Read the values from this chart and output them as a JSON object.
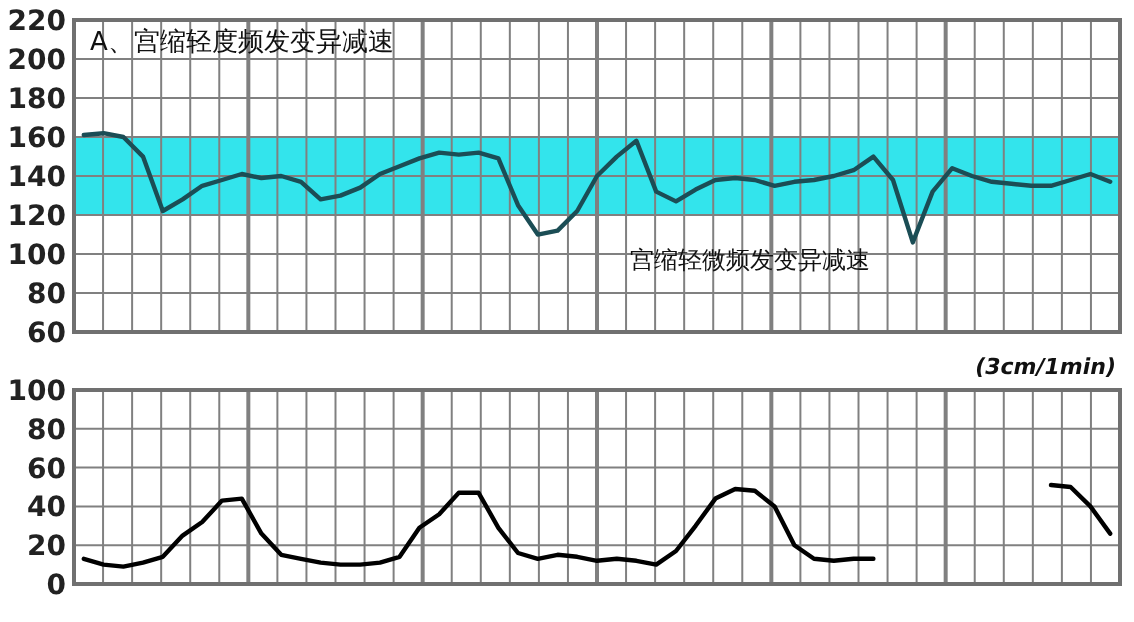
{
  "chart_data": [
    {
      "type": "line",
      "title": "A、宫缩轻度频发变异减速",
      "annotations": [
        "宫缩轻微频发变异减速"
      ],
      "categories": [
        null,
        null,
        null,
        null,
        null,
        null,
        null,
        null,
        null,
        null,
        null,
        null,
        null,
        null,
        null,
        null,
        null,
        null,
        null,
        null,
        null,
        null,
        null,
        null,
        null,
        null,
        null,
        null,
        null,
        null,
        null,
        null,
        null,
        null,
        null,
        null,
        null,
        null,
        null,
        null,
        null,
        null,
        null,
        null,
        null,
        null,
        null,
        null,
        null,
        null,
        null,
        null,
        null
      ],
      "series": [
        {
          "color": "#1b4d55",
          "values": [
            161,
            162,
            160,
            150,
            122,
            128,
            135,
            138,
            141,
            139,
            140,
            137,
            128,
            130,
            134,
            141,
            145,
            149,
            152,
            151,
            152,
            149,
            125,
            110,
            112,
            122,
            140,
            150,
            158,
            132,
            127,
            133,
            138,
            139,
            138,
            135,
            137,
            138,
            140,
            143,
            150,
            138,
            106,
            132,
            144,
            140,
            137,
            136,
            135,
            135,
            138,
            141,
            137
          ]
        }
      ],
      "ylim": [
        60,
        220
      ],
      "yticks": [
        60,
        80,
        100,
        120,
        140,
        160,
        180,
        200,
        220
      ],
      "grid": true,
      "tick_labels": "y",
      "bands": [
        {
          "axis": "y",
          "from": 120,
          "to": 160,
          "color": "#33e4ec"
        }
      ]
    },
    {
      "type": "line",
      "annotations": [
        "(3cm/1min)"
      ],
      "categories": [
        null,
        null,
        null,
        null,
        null,
        null,
        null,
        null,
        null,
        null,
        null,
        null,
        null,
        null,
        null,
        null,
        null,
        null,
        null,
        null,
        null,
        null,
        null,
        null,
        null,
        null,
        null,
        null,
        null,
        null,
        null,
        null,
        null,
        null,
        null,
        null,
        null,
        null,
        null,
        null,
        null,
        null,
        null,
        null,
        null,
        null,
        null,
        null,
        null,
        null,
        null,
        null,
        null
      ],
      "series": [
        {
          "color": "#000000",
          "values": [
            13,
            10,
            9,
            11,
            14,
            25,
            32,
            43,
            44,
            26,
            15,
            13,
            11,
            10,
            10,
            11,
            14,
            29,
            36,
            47,
            47,
            29,
            16,
            13,
            15,
            14,
            12,
            13,
            12,
            10,
            17,
            30,
            44,
            49,
            48,
            40,
            20,
            13,
            12,
            13,
            13,
            null,
            null,
            null,
            null,
            null,
            null,
            null,
            null,
            51,
            50,
            40,
            26
          ]
        }
      ],
      "ylim": [
        0,
        100
      ],
      "yticks": [
        0,
        20,
        40,
        60,
        80,
        100
      ],
      "grid": true,
      "tick_labels": "y"
    }
  ]
}
